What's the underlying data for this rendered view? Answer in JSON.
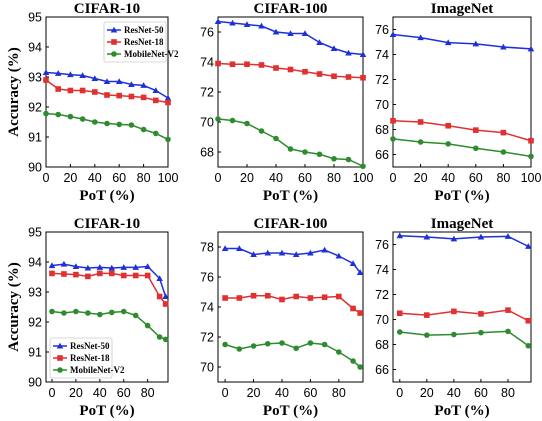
{
  "chart_data": [
    {
      "type": "line",
      "title": "CIFAR-10",
      "xlabel": "PoT (%)",
      "ylabel": "Accuracy (%)",
      "xlim": [
        0,
        100
      ],
      "ylim": [
        90,
        95
      ],
      "xticks": [
        0,
        20,
        40,
        60,
        80,
        100
      ],
      "yticks": [
        90,
        91,
        92,
        93,
        94,
        95
      ],
      "x": [
        0,
        10,
        20,
        30,
        40,
        50,
        60,
        70,
        80,
        90,
        100
      ],
      "legend": "top-right",
      "series": [
        {
          "name": "ResNet-50",
          "color": "#2030d8",
          "marker": "triangle",
          "values": [
            93.15,
            93.12,
            93.08,
            93.05,
            92.95,
            92.85,
            92.85,
            92.75,
            92.72,
            92.55,
            92.3
          ]
        },
        {
          "name": "ResNet-18",
          "color": "#e03030",
          "marker": "square",
          "values": [
            92.9,
            92.6,
            92.55,
            92.55,
            92.5,
            92.4,
            92.38,
            92.35,
            92.32,
            92.22,
            92.15
          ]
        },
        {
          "name": "MobileNet-V2",
          "color": "#2e8b2e",
          "marker": "circle",
          "values": [
            91.78,
            91.75,
            91.68,
            91.6,
            91.5,
            91.45,
            91.42,
            91.4,
            91.25,
            91.12,
            90.92
          ]
        }
      ]
    },
    {
      "type": "line",
      "title": "CIFAR-100",
      "xlabel": "PoT (%)",
      "ylabel": "",
      "xlim": [
        0,
        100
      ],
      "ylim": [
        67,
        77
      ],
      "xticks": [
        0,
        20,
        40,
        60,
        80,
        100
      ],
      "yticks": [
        68,
        70,
        72,
        74,
        76
      ],
      "x": [
        0,
        10,
        20,
        30,
        40,
        50,
        60,
        70,
        80,
        90,
        100
      ],
      "series": [
        {
          "name": "ResNet-50",
          "color": "#2030d8",
          "marker": "triangle",
          "values": [
            76.7,
            76.6,
            76.5,
            76.4,
            76.0,
            75.9,
            75.9,
            75.3,
            74.9,
            74.6,
            74.5
          ]
        },
        {
          "name": "ResNet-18",
          "color": "#e03030",
          "marker": "square",
          "values": [
            73.9,
            73.85,
            73.85,
            73.8,
            73.6,
            73.5,
            73.35,
            73.2,
            73.05,
            73.0,
            72.95
          ]
        },
        {
          "name": "MobileNet-V2",
          "color": "#2e8b2e",
          "marker": "circle",
          "values": [
            70.2,
            70.1,
            69.9,
            69.4,
            68.9,
            68.2,
            68.0,
            67.85,
            67.55,
            67.5,
            67.05
          ]
        }
      ]
    },
    {
      "type": "line",
      "title": "ImageNet",
      "xlabel": "PoT (%)",
      "ylabel": "",
      "xlim": [
        0,
        100
      ],
      "ylim": [
        65,
        77
      ],
      "xticks": [
        0,
        20,
        40,
        60,
        80,
        100
      ],
      "yticks": [
        66,
        68,
        70,
        72,
        74,
        76
      ],
      "x": [
        0,
        20,
        40,
        60,
        80,
        100
      ],
      "series": [
        {
          "name": "ResNet-50",
          "color": "#2030d8",
          "marker": "triangle",
          "values": [
            75.6,
            75.35,
            74.95,
            74.85,
            74.6,
            74.45
          ]
        },
        {
          "name": "ResNet-18",
          "color": "#e03030",
          "marker": "square",
          "values": [
            68.7,
            68.6,
            68.3,
            67.95,
            67.75,
            67.1
          ]
        },
        {
          "name": "MobileNet-V2",
          "color": "#2e8b2e",
          "marker": "circle",
          "values": [
            67.25,
            67.0,
            66.85,
            66.5,
            66.2,
            65.85
          ]
        }
      ]
    },
    {
      "type": "line",
      "title": "CIFAR-10",
      "xlabel": "PoT (%)",
      "ylabel": "Accuracy (%)",
      "xlim": [
        -5,
        97
      ],
      "ylim": [
        90,
        95
      ],
      "xticks": [
        0,
        20,
        40,
        60,
        80
      ],
      "yticks": [
        90,
        91,
        92,
        93,
        94,
        95
      ],
      "x": [
        0,
        10,
        20,
        30,
        40,
        50,
        60,
        70,
        80,
        90,
        95
      ],
      "legend": "bottom-left",
      "series": [
        {
          "name": "ResNet-50",
          "color": "#2030d8",
          "marker": "triangle",
          "values": [
            93.88,
            93.93,
            93.85,
            93.8,
            93.82,
            93.8,
            93.82,
            93.82,
            93.85,
            93.45,
            92.85
          ]
        },
        {
          "name": "ResNet-18",
          "color": "#e03030",
          "marker": "square",
          "values": [
            93.62,
            93.6,
            93.58,
            93.52,
            93.62,
            93.62,
            93.55,
            93.55,
            93.55,
            92.85,
            92.6
          ]
        },
        {
          "name": "MobileNet-V2",
          "color": "#2e8b2e",
          "marker": "circle",
          "values": [
            92.35,
            92.3,
            92.35,
            92.3,
            92.25,
            92.32,
            92.35,
            92.22,
            91.88,
            91.5,
            91.42
          ]
        }
      ]
    },
    {
      "type": "line",
      "title": "CIFAR-100",
      "xlabel": "PoT (%)",
      "ylabel": "",
      "xlim": [
        -5,
        97
      ],
      "ylim": [
        69,
        79
      ],
      "xticks": [
        0,
        20,
        40,
        60,
        80
      ],
      "yticks": [
        70,
        72,
        74,
        76,
        78
      ],
      "x": [
        0,
        10,
        20,
        30,
        40,
        50,
        60,
        70,
        80,
        90,
        95
      ],
      "series": [
        {
          "name": "ResNet-50",
          "color": "#2030d8",
          "marker": "triangle",
          "values": [
            77.9,
            77.9,
            77.5,
            77.6,
            77.6,
            77.5,
            77.6,
            77.8,
            77.4,
            76.9,
            76.3
          ]
        },
        {
          "name": "ResNet-18",
          "color": "#e03030",
          "marker": "square",
          "values": [
            74.6,
            74.6,
            74.75,
            74.75,
            74.5,
            74.7,
            74.6,
            74.65,
            74.7,
            73.9,
            73.6
          ]
        },
        {
          "name": "MobileNet-V2",
          "color": "#2e8b2e",
          "marker": "circle",
          "values": [
            71.5,
            71.2,
            71.4,
            71.55,
            71.6,
            71.25,
            71.6,
            71.5,
            71.0,
            70.4,
            70.0
          ]
        }
      ]
    },
    {
      "type": "line",
      "title": "ImageNet",
      "xlabel": "PoT (%)",
      "ylabel": "",
      "xlim": [
        -5,
        97
      ],
      "ylim": [
        65,
        77
      ],
      "xticks": [
        0,
        20,
        40,
        60,
        80
      ],
      "yticks": [
        66,
        68,
        70,
        72,
        74,
        76
      ],
      "x": [
        0,
        20,
        40,
        60,
        80,
        95
      ],
      "series": [
        {
          "name": "ResNet-50",
          "color": "#2030d8",
          "marker": "triangle",
          "values": [
            76.7,
            76.6,
            76.45,
            76.6,
            76.65,
            75.85
          ]
        },
        {
          "name": "ResNet-18",
          "color": "#e03030",
          "marker": "square",
          "values": [
            70.5,
            70.35,
            70.65,
            70.45,
            70.75,
            69.9
          ]
        },
        {
          "name": "MobileNet-V2",
          "color": "#2e8b2e",
          "marker": "circle",
          "values": [
            69.0,
            68.75,
            68.8,
            68.95,
            69.05,
            67.9
          ]
        }
      ]
    }
  ]
}
